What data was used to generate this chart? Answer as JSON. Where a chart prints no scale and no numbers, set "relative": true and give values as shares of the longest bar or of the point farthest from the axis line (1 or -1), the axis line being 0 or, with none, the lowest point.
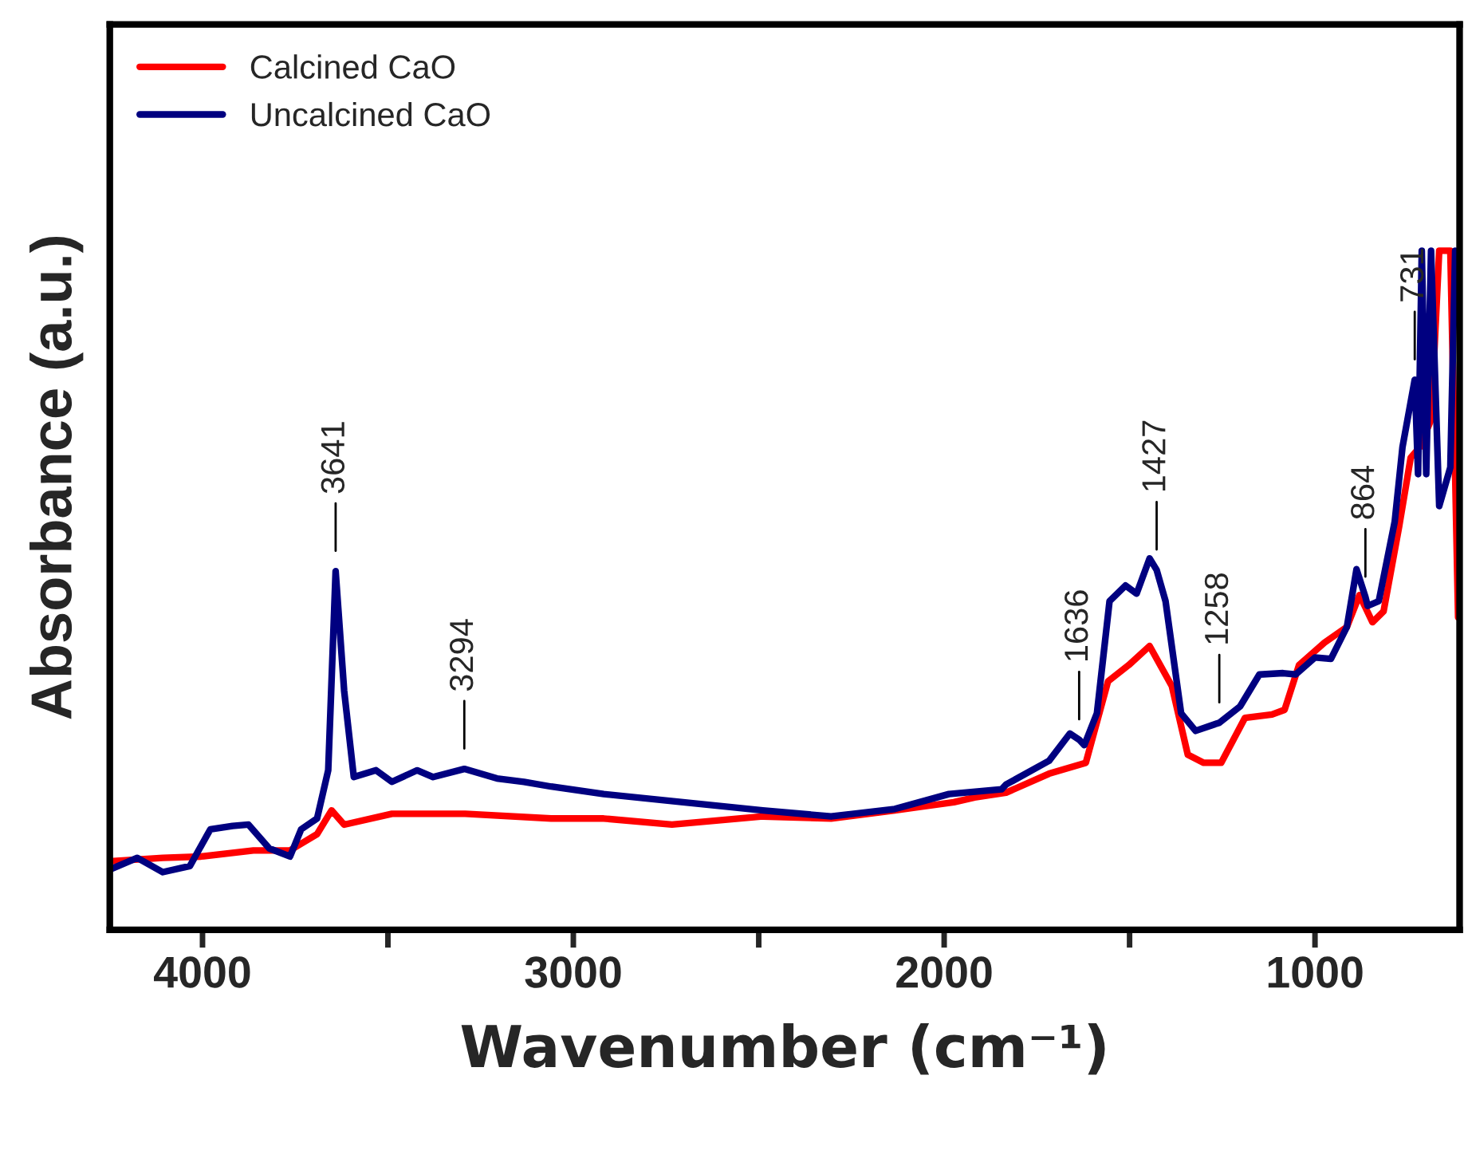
{
  "chart_data": {
    "type": "line",
    "relative": true,
    "xlabel": "Wavenumber (cm⁻¹)",
    "ylabel": "Absorbance (a.u.)",
    "xlim": [
      4250,
      610
    ],
    "xticks": [
      4000,
      {
        "value": 3500,
        "label": null
      },
      3000,
      {
        "value": 2500,
        "label": null
      },
      2000,
      {
        "value": 1500,
        "label": null
      },
      1000
    ],
    "legend": "top left",
    "grid": false,
    "tick_labels": "x",
    "line_style": "solid",
    "marker": "none",
    "series": [
      {
        "name": "Calcined CaO",
        "color": "#ff0000",
        "x": [
          4249,
          4107,
          4004,
          3863,
          3764,
          3691,
          3652,
          3618,
          3489,
          3292,
          3060,
          2918,
          2734,
          2489,
          2305,
          2133,
          1974,
          1918,
          1833,
          1717,
          1618,
          1558,
          1502,
          1446,
          1386,
          1343,
          1300,
          1253,
          1189,
          1116,
          1082,
          1043,
          974,
          914,
          880,
          845,
          815,
          773,
          742,
          717,
          687,
          665,
          635,
          622,
          614
        ],
        "values": [
          0.101,
          0.106,
          0.108,
          0.117,
          0.117,
          0.141,
          0.176,
          0.155,
          0.171,
          0.171,
          0.164,
          0.164,
          0.155,
          0.167,
          0.164,
          0.176,
          0.188,
          0.195,
          0.202,
          0.23,
          0.246,
          0.366,
          0.39,
          0.418,
          0.359,
          0.258,
          0.246,
          0.246,
          0.312,
          0.317,
          0.324,
          0.39,
          0.423,
          0.446,
          0.493,
          0.453,
          0.469,
          0.594,
          0.695,
          0.711,
          0.751,
          1.0,
          1.0,
          0.671,
          0.46
        ]
      },
      {
        "name": "Uncalcined CaO",
        "color": "#000080",
        "x": [
          4249,
          4176,
          4107,
          4034,
          3979,
          3919,
          3876,
          3820,
          3764,
          3734,
          3691,
          3661,
          3641,
          3618,
          3592,
          3532,
          3489,
          3421,
          3378,
          3294,
          3206,
          3133,
          3060,
          2918,
          2704,
          2489,
          2305,
          2133,
          1987,
          1845,
          1833,
          1717,
          1661,
          1636,
          1622,
          1588,
          1554,
          1511,
          1481,
          1446,
          1427,
          1403,
          1361,
          1322,
          1258,
          1202,
          1150,
          1086,
          1052,
          1000,
          957,
          914,
          888,
          864,
          858,
          828,
          785,
          764,
          731,
          722,
          712,
          700,
          687,
          665,
          635,
          622
        ],
        "values": [
          0.089,
          0.106,
          0.085,
          0.094,
          0.148,
          0.153,
          0.155,
          0.12,
          0.108,
          0.148,
          0.164,
          0.235,
          0.528,
          0.352,
          0.225,
          0.235,
          0.218,
          0.235,
          0.225,
          0.237,
          0.223,
          0.218,
          0.211,
          0.2,
          0.188,
          0.176,
          0.167,
          0.178,
          0.2,
          0.207,
          0.214,
          0.249,
          0.289,
          0.28,
          0.272,
          0.319,
          0.484,
          0.507,
          0.495,
          0.547,
          0.53,
          0.484,
          0.319,
          0.293,
          0.305,
          0.329,
          0.376,
          0.378,
          0.376,
          0.401,
          0.399,
          0.446,
          0.531,
          0.49,
          0.477,
          0.484,
          0.601,
          0.711,
          0.81,
          0.671,
          1.0,
          0.671,
          1.0,
          0.624,
          0.681,
          1.0
        ]
      }
    ],
    "annotations": [
      {
        "text": "3641",
        "x": 3641,
        "y": 0.528
      },
      {
        "text": "3294",
        "x": 3294,
        "y": 0.237
      },
      {
        "text": "1636",
        "x": 1636,
        "y": 0.28
      },
      {
        "text": "1427",
        "x": 1427,
        "y": 0.53
      },
      {
        "text": "1258",
        "x": 1258,
        "y": 0.305
      },
      {
        "text": "864",
        "x": 864,
        "y": 0.49
      },
      {
        "text": "731",
        "x": 731,
        "y": 0.81
      }
    ]
  }
}
